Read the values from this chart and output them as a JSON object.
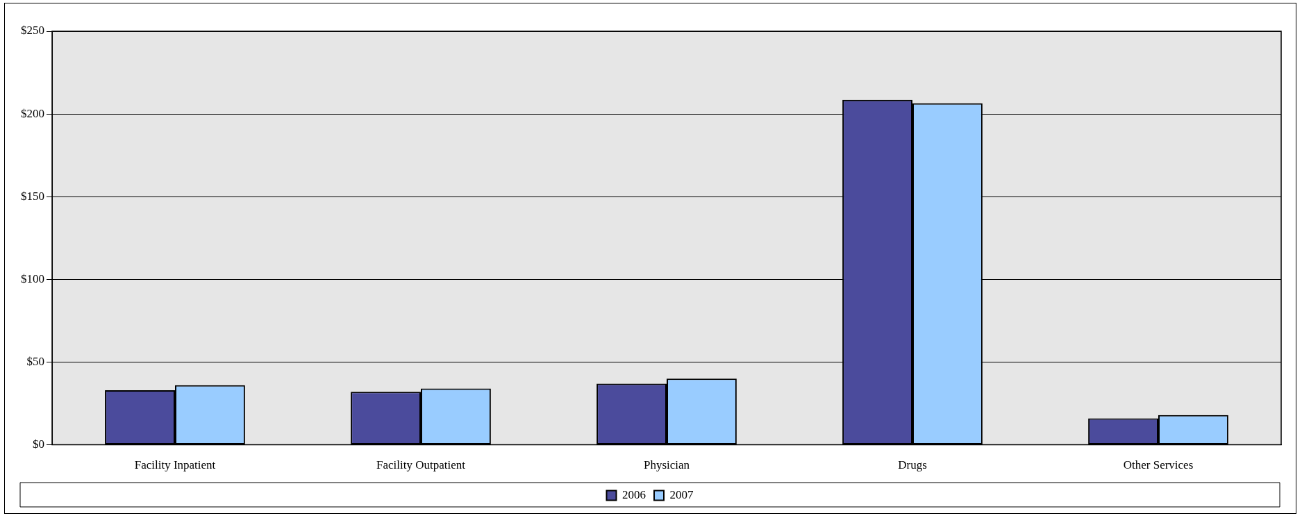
{
  "chart_data": {
    "type": "bar",
    "categories": [
      "Facility Inpatient",
      "Facility Outpatient",
      "Physician",
      "Drugs",
      "Other Services"
    ],
    "series": [
      {
        "name": "2006",
        "color": "#4b4b9c",
        "values": [
          33,
          32,
          37,
          208.5,
          16
        ]
      },
      {
        "name": "2007",
        "color": "#99ccff",
        "values": [
          36,
          34,
          40,
          206.5,
          18
        ]
      }
    ],
    "ylim": [
      0,
      250
    ],
    "yticks": [
      {
        "value": 0,
        "label": "$0"
      },
      {
        "value": 50,
        "label": "$50"
      },
      {
        "value": 100,
        "label": "$100"
      },
      {
        "value": 150,
        "label": "$150"
      },
      {
        "value": 200,
        "label": "$200"
      },
      {
        "value": 250,
        "label": "$250"
      }
    ],
    "grid": "y",
    "legend": "bottom"
  }
}
